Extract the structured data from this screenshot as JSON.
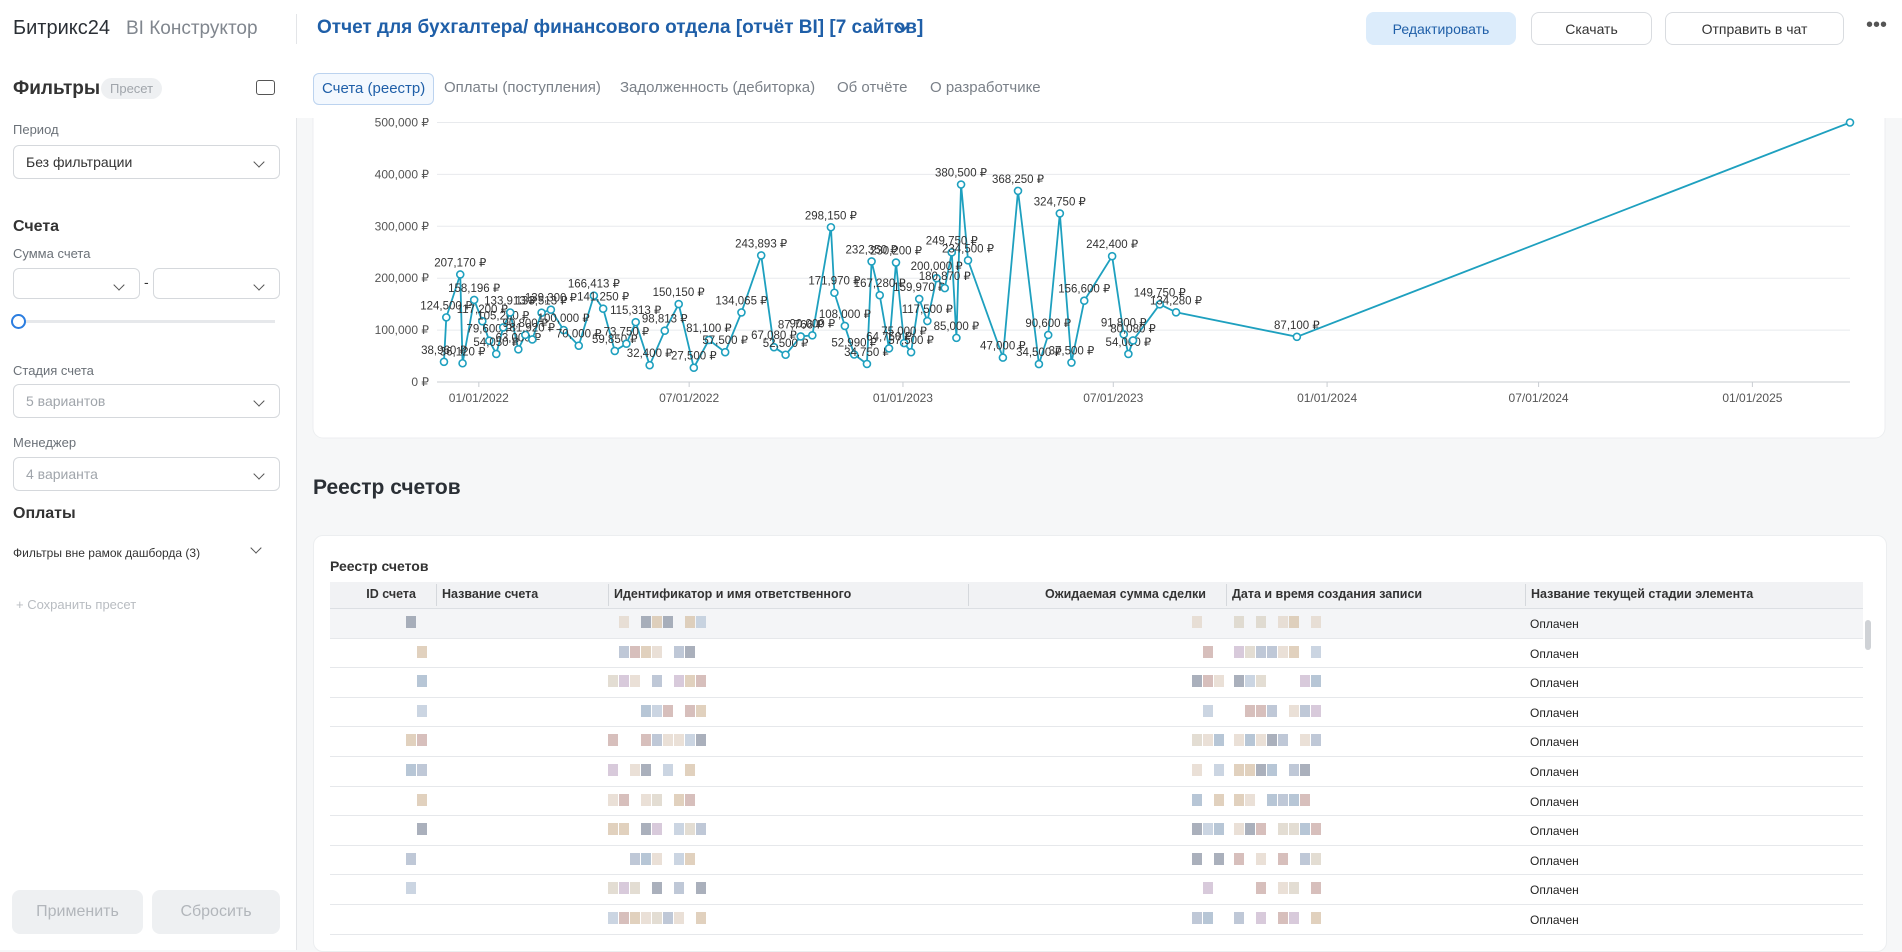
{
  "header": {
    "logo": "Битрикс24",
    "product": "BI Конструктор",
    "title": "Отчет для бухгалтера/ финансового отдела [отчёт BI] [7 сайтов]",
    "buttons": [
      "Редактировать",
      "Скачать",
      "Отправить в чат"
    ]
  },
  "sidebar": {
    "title": "Фильтры",
    "preset_badge": "Пресет",
    "period_label": "Период",
    "period_value": "Без фильтрации",
    "section_invoices": "Счета",
    "amount_label": "Сумма счета",
    "range_separator": "-",
    "stage_label": "Стадия счета",
    "stage_value": "5 вариантов",
    "manager_label": "Менеджер",
    "manager_value": "4 варианта",
    "section_payments": "Оплаты",
    "external_filters": "Фильтры вне рамок дашборда (3)",
    "save_preset": "+ Сохранить пресет",
    "apply": "Применить",
    "reset": "Сбросить"
  },
  "tabs": [
    "Счета (реестр)",
    "Оплаты (поступления)",
    "Задолженность (дебиторка)",
    "Об отчёте",
    "О разработчике"
  ],
  "chart_data": {
    "type": "line",
    "color": "#1ea0bf",
    "grid": true,
    "x": [
      "2021-12-02",
      "2021-12-04",
      "2021-12-16",
      "2021-12-18",
      "2021-12-28",
      "2022-01-04",
      "2022-01-10",
      "2022-01-16",
      "2022-01-22",
      "2022-01-28",
      "2022-02-04",
      "2022-02-10",
      "2022-02-16",
      "2022-02-24",
      "2022-03-04",
      "2022-03-15",
      "2022-03-28",
      "2022-04-10",
      "2022-04-18",
      "2022-04-28",
      "2022-05-08",
      "2022-05-16",
      "2022-05-28",
      "2022-06-10",
      "2022-06-22",
      "2022-07-05",
      "2022-07-18",
      "2022-08-01",
      "2022-08-15",
      "2022-09-01",
      "2022-09-12",
      "2022-09-22",
      "2022-10-05",
      "2022-10-15",
      "2022-10-31",
      "2022-11-03",
      "2022-11-12",
      "2022-11-20",
      "2022-12-01",
      "2022-12-05",
      "2022-12-12",
      "2022-12-20",
      "2022-12-26",
      "2023-01-02",
      "2023-01-08",
      "2023-01-15",
      "2023-01-22",
      "2023-01-30",
      "2023-02-06",
      "2023-02-12",
      "2023-02-16",
      "2023-02-20",
      "2023-02-26",
      "2023-03-28",
      "2023-04-10",
      "2023-04-28",
      "2023-05-06",
      "2023-05-16",
      "2023-05-26",
      "2023-06-06",
      "2023-06-30",
      "2023-07-10",
      "2023-07-14",
      "2023-07-18",
      "2023-08-10",
      "2023-08-24",
      "2023-12-06",
      "2025-03-26"
    ],
    "values": [
      38960,
      124500,
      207170,
      36120,
      158196,
      117200,
      79600,
      54050,
      105200,
      133913,
      63000,
      90800,
      81920,
      133513,
      139300,
      100000,
      70000,
      166413,
      141250,
      59850,
      73750,
      115313,
      32400,
      98813,
      150150,
      27500,
      81100,
      57500,
      134065,
      243893,
      67080,
      52500,
      87766,
      90000,
      298150,
      171970,
      108000,
      52990,
      34750,
      232350,
      167280,
      64750,
      230200,
      75000,
      57500,
      159970,
      117500,
      200000,
      180870,
      249750,
      85000,
      380500,
      234500,
      47000,
      368250,
      34500,
      90600,
      324750,
      37500,
      156600,
      242400,
      91800,
      54000,
      80080,
      149750,
      134280,
      87100,
      500000
    ],
    "value_labels": [
      "38,960 ₽",
      "124,500 ₽",
      "207,170 ₽",
      "36,120 ₽",
      "158,196 ₽",
      "117,200 ₽",
      "79,600 ₽",
      "54,050 ₽",
      "105,200 ₽",
      "133,913 ₽",
      "63,000 ₽",
      "90,800 ₽",
      "81,920 ₽",
      "133,513 ₽",
      "139,300 ₽",
      "100,000 ₽",
      "70,000 ₽",
      "166,413 ₽",
      "141,250 ₽",
      "59,850 ₽",
      "73,750 ₽",
      "115,313 ₽",
      "32,400 ₽",
      "98,813 ₽",
      "150,150 ₽",
      "27,500 ₽",
      "81,100 ₽",
      "57,500 ₽",
      "134,065 ₽",
      "243,893 ₽",
      "67,080 ₽",
      "52,500 ₽",
      "87,766 ₽",
      "90,000 ₽",
      "298,150 ₽",
      "171,970 ₽",
      "108,000 ₽",
      "52,990 ₽",
      "34,750 ₽",
      "232,350 ₽",
      "167,280 ₽",
      "64,750 ₽",
      "230,200 ₽",
      "75,000 ₽",
      "57,500 ₽",
      "159,970 ₽",
      "117,500 ₽",
      "200,000 ₽",
      "180,870 ₽",
      "249,750 ₽",
      "85,000 ₽",
      "380,500 ₽",
      "234,500 ₽",
      "47,000 ₽",
      "368,250 ₽",
      "34,500 ₽",
      "90,600 ₽",
      "324,750 ₽",
      "37,500 ₽",
      "156,600 ₽",
      "242,400 ₽",
      "91,800 ₽",
      "54,000 ₽",
      "80,080 ₽",
      "149,750 ₽",
      "134,280 ₽",
      "87,100 ₽",
      null
    ],
    "xlim": [
      "2021-11-26",
      "2025-03-26"
    ],
    "xticks": [
      {
        "value": "2022-01-01",
        "label": "01/01/2022"
      },
      {
        "value": "2022-07-01",
        "label": "07/01/2022"
      },
      {
        "value": "2023-01-01",
        "label": "01/01/2023"
      },
      {
        "value": "2023-07-01",
        "label": "07/01/2023"
      },
      {
        "value": "2024-01-01",
        "label": "01/01/2024"
      },
      {
        "value": "2024-07-01",
        "label": "07/01/2024"
      },
      {
        "value": "2025-01-01",
        "label": "01/01/2025"
      }
    ],
    "ylim": [
      0,
      500000
    ],
    "yticks": [
      {
        "value": 0,
        "label": "0 ₽"
      },
      {
        "value": 100000,
        "label": "100,000 ₽"
      },
      {
        "value": 200000,
        "label": "200,000 ₽"
      },
      {
        "value": 300000,
        "label": "300,000 ₽"
      },
      {
        "value": 400000,
        "label": "400,000 ₽"
      },
      {
        "value": 500000,
        "label": "500,000 ₽"
      }
    ]
  },
  "section_title": "Реестр счетов",
  "table": {
    "title": "Реестр счетов",
    "columns": [
      "ID счета",
      "Название счета",
      "Идентификатор и имя ответственного",
      "Ожидаемая сумма сделки",
      "Дата и время создания записи",
      "Название текущей стадии элемента"
    ],
    "rows": [
      {
        "stage": "Оплачен"
      },
      {
        "stage": "Оплачен"
      },
      {
        "stage": "Оплачен"
      },
      {
        "stage": "Оплачен"
      },
      {
        "stage": "Оплачен"
      },
      {
        "stage": "Оплачен"
      },
      {
        "stage": "Оплачен"
      },
      {
        "stage": "Оплачен"
      },
      {
        "stage": "Оплачен"
      },
      {
        "stage": "Оплачен"
      },
      {
        "stage": "Оплачен"
      }
    ]
  }
}
